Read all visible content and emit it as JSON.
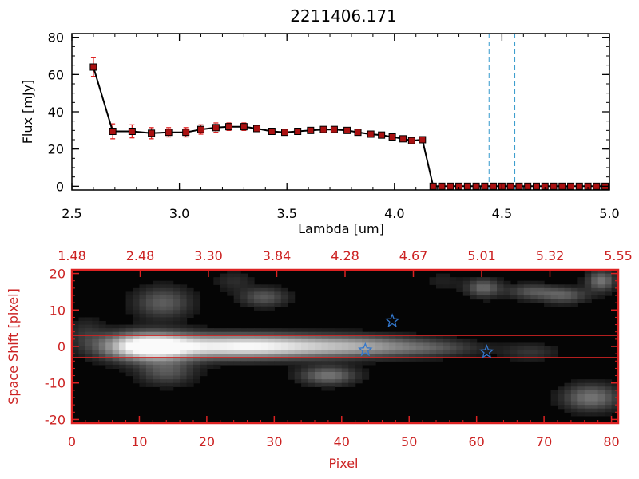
{
  "chart_data": [
    {
      "type": "line",
      "title": "2211406.171",
      "xlabel": "Lambda [um]",
      "ylabel": "Flux [mJy]",
      "xlim": [
        2.5,
        5.0
      ],
      "ylim": [
        -2,
        82
      ],
      "xticks": [
        "2.5",
        "3.0",
        "3.5",
        "4.0",
        "4.5",
        "5.0"
      ],
      "yticks": [
        "0",
        "20",
        "40",
        "60",
        "80"
      ],
      "colors": {
        "line": "#000000",
        "marker": "#aa1111",
        "errorbar": "#dd2222",
        "vline": "#3399cc",
        "zero_line": "#dd2222"
      },
      "vlines": [
        4.44,
        4.56
      ],
      "series": [
        {
          "x": [
            2.6,
            2.69,
            2.78,
            2.87,
            2.95,
            3.03,
            3.1,
            3.17,
            3.23,
            3.3,
            3.36,
            3.43,
            3.49,
            3.55,
            3.61,
            3.67,
            3.72,
            3.78,
            3.83,
            3.89,
            3.94,
            3.99,
            4.04,
            4.08,
            4.13,
            4.18,
            4.22,
            4.26,
            4.3,
            4.34,
            4.38,
            4.42,
            4.46,
            4.5,
            4.54,
            4.58,
            4.62,
            4.66,
            4.7,
            4.74,
            4.78,
            4.82,
            4.86,
            4.9,
            4.94,
            4.98
          ],
          "y": [
            64,
            29.5,
            29.5,
            28.5,
            29,
            29,
            30.5,
            31.5,
            32,
            32,
            31,
            29.5,
            29,
            29.5,
            30,
            30.5,
            30.5,
            30,
            29,
            28,
            27.5,
            26.5,
            25.5,
            24.5,
            25,
            0,
            0,
            0,
            0,
            0,
            0,
            0,
            0,
            0,
            0,
            0,
            0,
            0,
            0,
            0,
            0,
            0,
            0,
            0,
            0,
            0
          ],
          "yerr": [
            5,
            4,
            3.5,
            3,
            2.5,
            2.5,
            2.5,
            2.5,
            2,
            2,
            1.5,
            1.5,
            1.2,
            1.2,
            1.2,
            1.2,
            1.2,
            1.2,
            1.2,
            1.2,
            1.2,
            1.2,
            1.2,
            1.2,
            1.2,
            0.6,
            0.5,
            0.5,
            0.5,
            0.5,
            0.5,
            0.5,
            0.5,
            0.5,
            0.5,
            0.5,
            0.5,
            0.5,
            0.5,
            0.5,
            0.5,
            0.5,
            0.5,
            0.5,
            0.5,
            0.5
          ]
        }
      ]
    },
    {
      "type": "heatmap",
      "xlabel": "Pixel",
      "ylabel": "Space Shift [pixel]",
      "xlim": [
        0,
        81
      ],
      "ylim": [
        -21,
        21
      ],
      "xticks": [
        "0",
        "10",
        "20",
        "30",
        "40",
        "50",
        "60",
        "70",
        "80"
      ],
      "yticks": [
        "20",
        "10",
        "0",
        "-10",
        "-20"
      ],
      "top_ticks": [
        "1.48",
        "2.48",
        "3.30",
        "3.84",
        "4.28",
        "4.67",
        "5.01",
        "5.32",
        "5.55"
      ],
      "colors": {
        "axis": "#cc2222",
        "frame": "#dd2222",
        "background": "#050505",
        "aperture_line": "#cc2222",
        "star": "#3377cc"
      },
      "aperture_lines": [
        3,
        -3
      ],
      "stars": [
        {
          "x": 43.5,
          "y": -1
        },
        {
          "x": 47.5,
          "y": 7
        },
        {
          "x": 61.5,
          "y": -1.5
        }
      ],
      "blobs": [
        {
          "x": 11,
          "y": 0,
          "sx": 4.5,
          "sy": 2.6,
          "a": 1.0
        },
        {
          "x": 22,
          "y": 0,
          "sx": 8,
          "sy": 2.3,
          "a": 0.72
        },
        {
          "x": 33,
          "y": 0,
          "sx": 8,
          "sy": 2.1,
          "a": 0.55
        },
        {
          "x": 44,
          "y": 0,
          "sx": 6,
          "sy": 2.0,
          "a": 0.4
        },
        {
          "x": 54,
          "y": -0.5,
          "sx": 5,
          "sy": 1.6,
          "a": 0.25
        },
        {
          "x": 68,
          "y": -1.5,
          "sx": 3,
          "sy": 1.6,
          "a": 0.18
        },
        {
          "x": 13.5,
          "y": 12,
          "sx": 3,
          "sy": 3,
          "a": 0.35
        },
        {
          "x": 14,
          "y": -7,
          "sx": 3,
          "sy": 2.5,
          "a": 0.32
        },
        {
          "x": 28.5,
          "y": 13.5,
          "sx": 2.5,
          "sy": 1.8,
          "a": 0.33
        },
        {
          "x": 38,
          "y": -8,
          "sx": 3,
          "sy": 1.8,
          "a": 0.45
        },
        {
          "x": 61,
          "y": 16,
          "sx": 1.8,
          "sy": 1.8,
          "a": 0.4
        },
        {
          "x": 68,
          "y": 15,
          "sx": 2.5,
          "sy": 1.5,
          "a": 0.3
        },
        {
          "x": 73,
          "y": 14,
          "sx": 2.5,
          "sy": 1.5,
          "a": 0.35
        },
        {
          "x": 78.5,
          "y": 18,
          "sx": 1.5,
          "sy": 2,
          "a": 0.45
        },
        {
          "x": 77,
          "y": -14,
          "sx": 3,
          "sy": 2.5,
          "a": 0.45
        },
        {
          "x": 24,
          "y": 18,
          "sx": 2,
          "sy": 2,
          "a": 0.15
        },
        {
          "x": 2,
          "y": 4,
          "sx": 2,
          "sy": 3,
          "a": 0.15
        },
        {
          "x": 55,
          "y": 18,
          "sx": 2,
          "sy": 2,
          "a": 0.1
        }
      ]
    }
  ]
}
